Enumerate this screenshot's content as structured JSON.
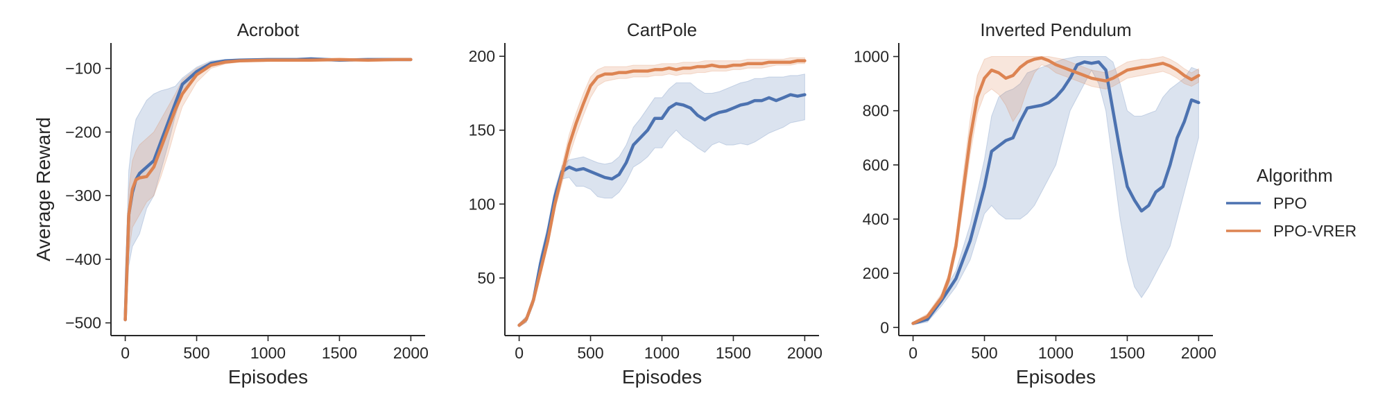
{
  "legend": {
    "title": "Algorithm",
    "items": [
      {
        "label": "PPO",
        "color": "#4C72B0"
      },
      {
        "label": "PPO-VRER",
        "color": "#DD8452"
      }
    ]
  },
  "chart_data": [
    {
      "type": "line",
      "title": "Acrobot",
      "xlabel": "Episodes",
      "ylabel": "Average Reward",
      "xlim": [
        -100,
        2100
      ],
      "ylim": [
        -520,
        -60
      ],
      "xticks": [
        0,
        500,
        1000,
        1500,
        2000
      ],
      "yticks": [
        -500,
        -400,
        -300,
        -200,
        -100
      ],
      "grid": false,
      "series": [
        {
          "name": "PPO",
          "color": "#4C72B0",
          "x": [
            0,
            10,
            25,
            50,
            75,
            100,
            150,
            200,
            250,
            300,
            350,
            400,
            500,
            600,
            700,
            800,
            1000,
            1200,
            1300,
            1500,
            1700,
            1900,
            2000
          ],
          "y": [
            -495,
            -420,
            -330,
            -295,
            -275,
            -265,
            -255,
            -245,
            -215,
            -185,
            -155,
            -125,
            -105,
            -92,
            -88,
            -87,
            -86,
            -86,
            -85,
            -87,
            -86,
            -86,
            -86
          ],
          "lower": [
            -495,
            -470,
            -410,
            -380,
            -370,
            -360,
            -320,
            -300,
            -260,
            -220,
            -175,
            -140,
            -112,
            -95,
            -90,
            -89,
            -89,
            -88,
            -88,
            -89,
            -88,
            -88,
            -88
          ],
          "upper": [
            -495,
            -360,
            -260,
            -210,
            -180,
            -170,
            -150,
            -140,
            -135,
            -132,
            -128,
            -115,
            -98,
            -88,
            -86,
            -85,
            -84,
            -84,
            -83,
            -85,
            -84,
            -84,
            -84
          ]
        },
        {
          "name": "PPO-VRER",
          "color": "#DD8452",
          "x": [
            0,
            10,
            25,
            50,
            75,
            100,
            150,
            200,
            250,
            300,
            350,
            400,
            500,
            600,
            700,
            800,
            1000,
            1200,
            1300,
            1500,
            1700,
            1900,
            2000
          ],
          "y": [
            -495,
            -430,
            -330,
            -290,
            -275,
            -272,
            -270,
            -255,
            -225,
            -195,
            -165,
            -140,
            -110,
            -95,
            -90,
            -88,
            -87,
            -87,
            -87,
            -86,
            -87,
            -86,
            -86
          ],
          "lower": [
            -495,
            -460,
            -390,
            -350,
            -340,
            -330,
            -310,
            -300,
            -270,
            -235,
            -195,
            -160,
            -122,
            -100,
            -93,
            -90,
            -89,
            -89,
            -89,
            -88,
            -89,
            -88,
            -88
          ],
          "upper": [
            -495,
            -400,
            -290,
            -245,
            -230,
            -220,
            -210,
            -200,
            -180,
            -160,
            -140,
            -118,
            -100,
            -90,
            -87,
            -86,
            -85,
            -85,
            -85,
            -84,
            -85,
            -84,
            -84
          ]
        }
      ]
    },
    {
      "type": "line",
      "title": "CartPole",
      "xlabel": "Episodes",
      "ylabel": "",
      "xlim": [
        -100,
        2100
      ],
      "ylim": [
        11,
        209
      ],
      "xticks": [
        0,
        500,
        1000,
        1500,
        2000
      ],
      "yticks": [
        50,
        100,
        150,
        200
      ],
      "grid": false,
      "series": [
        {
          "name": "PPO",
          "color": "#4C72B0",
          "x": [
            0,
            50,
            100,
            150,
            200,
            250,
            300,
            350,
            400,
            450,
            500,
            550,
            600,
            650,
            700,
            750,
            800,
            850,
            900,
            950,
            1000,
            1050,
            1100,
            1150,
            1200,
            1250,
            1300,
            1350,
            1400,
            1450,
            1500,
            1550,
            1600,
            1650,
            1700,
            1750,
            1800,
            1850,
            1900,
            1950,
            2000
          ],
          "y": [
            18,
            22,
            35,
            60,
            80,
            105,
            122,
            125,
            123,
            124,
            122,
            120,
            118,
            117,
            120,
            128,
            140,
            145,
            150,
            158,
            158,
            165,
            168,
            167,
            165,
            160,
            157,
            160,
            162,
            163,
            165,
            167,
            168,
            170,
            170,
            172,
            170,
            172,
            174,
            173,
            174
          ],
          "lower": [
            17,
            20,
            32,
            55,
            75,
            100,
            117,
            118,
            112,
            112,
            110,
            105,
            104,
            104,
            108,
            115,
            125,
            128,
            132,
            138,
            138,
            145,
            150,
            145,
            142,
            138,
            135,
            140,
            142,
            140,
            140,
            141,
            140,
            142,
            145,
            148,
            150,
            152,
            155,
            156,
            157
          ],
          "upper": [
            19,
            24,
            38,
            65,
            85,
            110,
            126,
            130,
            131,
            132,
            130,
            128,
            127,
            128,
            132,
            140,
            152,
            158,
            165,
            172,
            172,
            178,
            182,
            182,
            182,
            178,
            175,
            175,
            176,
            178,
            180,
            182,
            183,
            185,
            185,
            186,
            186,
            186,
            187,
            187,
            188
          ]
        },
        {
          "name": "PPO-VRER",
          "color": "#DD8452",
          "x": [
            0,
            50,
            100,
            150,
            200,
            250,
            300,
            350,
            400,
            450,
            500,
            550,
            600,
            650,
            700,
            750,
            800,
            850,
            900,
            950,
            1000,
            1050,
            1100,
            1150,
            1200,
            1250,
            1300,
            1350,
            1400,
            1450,
            1500,
            1550,
            1600,
            1650,
            1700,
            1750,
            1800,
            1850,
            1900,
            1950,
            2000
          ],
          "y": [
            18,
            22,
            35,
            55,
            75,
            100,
            120,
            140,
            155,
            168,
            180,
            186,
            188,
            188,
            189,
            189,
            190,
            190,
            190,
            191,
            191,
            192,
            191,
            192,
            192,
            193,
            193,
            194,
            193,
            193,
            194,
            194,
            195,
            195,
            195,
            196,
            196,
            196,
            196,
            197,
            197
          ],
          "lower": [
            17,
            20,
            32,
            52,
            72,
            96,
            114,
            132,
            147,
            160,
            172,
            180,
            183,
            184,
            185,
            185,
            186,
            186,
            186,
            187,
            187,
            188,
            187,
            188,
            188,
            189,
            189,
            190,
            190,
            190,
            191,
            191,
            192,
            192,
            192,
            193,
            194,
            194,
            194,
            195,
            195
          ],
          "upper": [
            19,
            24,
            38,
            58,
            78,
            104,
            126,
            147,
            162,
            175,
            186,
            191,
            193,
            193,
            193,
            193,
            194,
            194,
            194,
            194,
            195,
            195,
            195,
            196,
            196,
            196,
            197,
            197,
            197,
            197,
            197,
            197,
            198,
            198,
            198,
            198,
            198,
            198,
            199,
            199,
            199
          ]
        }
      ]
    },
    {
      "type": "line",
      "title": "Inverted Pendulum",
      "xlabel": "Episodes",
      "ylabel": "",
      "xlim": [
        -100,
        2100
      ],
      "ylim": [
        -30,
        1050
      ],
      "xticks": [
        0,
        500,
        1000,
        1500,
        2000
      ],
      "yticks": [
        0,
        200,
        400,
        600,
        800,
        1000
      ],
      "grid": false,
      "series": [
        {
          "name": "PPO",
          "color": "#4C72B0",
          "x": [
            0,
            100,
            200,
            300,
            400,
            500,
            550,
            600,
            650,
            700,
            750,
            800,
            850,
            900,
            950,
            1000,
            1050,
            1100,
            1150,
            1200,
            1250,
            1300,
            1350,
            1400,
            1450,
            1500,
            1550,
            1600,
            1650,
            1700,
            1750,
            1800,
            1850,
            1900,
            1950,
            2000
          ],
          "y": [
            15,
            30,
            100,
            180,
            320,
            520,
            650,
            670,
            690,
            700,
            760,
            810,
            815,
            820,
            830,
            850,
            880,
            920,
            970,
            980,
            975,
            980,
            950,
            800,
            650,
            520,
            470,
            430,
            450,
            500,
            520,
            600,
            700,
            760,
            840,
            830
          ],
          "lower": [
            10,
            20,
            80,
            150,
            250,
            420,
            450,
            420,
            400,
            400,
            400,
            420,
            450,
            500,
            550,
            600,
            700,
            800,
            850,
            900,
            950,
            900,
            800,
            600,
            400,
            250,
            150,
            110,
            150,
            200,
            250,
            300,
            400,
            500,
            600,
            700
          ],
          "upper": [
            20,
            45,
            120,
            210,
            380,
            620,
            780,
            850,
            870,
            880,
            900,
            940,
            950,
            960,
            970,
            980,
            990,
            995,
            1000,
            1000,
            1000,
            1000,
            1000,
            980,
            900,
            800,
            780,
            780,
            790,
            800,
            850,
            880,
            900,
            920,
            960,
            950
          ]
        },
        {
          "name": "PPO-VRER",
          "color": "#DD8452",
          "x": [
            0,
            100,
            200,
            250,
            300,
            350,
            400,
            450,
            500,
            550,
            600,
            650,
            700,
            750,
            800,
            850,
            900,
            950,
            1000,
            1050,
            1100,
            1150,
            1200,
            1250,
            1300,
            1350,
            1400,
            1450,
            1500,
            1550,
            1600,
            1650,
            1700,
            1750,
            1800,
            1850,
            1900,
            1950,
            2000
          ],
          "y": [
            15,
            40,
            110,
            180,
            300,
            500,
            700,
            850,
            920,
            950,
            940,
            920,
            930,
            960,
            980,
            990,
            995,
            985,
            970,
            960,
            950,
            940,
            930,
            920,
            915,
            910,
            920,
            935,
            950,
            955,
            960,
            965,
            970,
            975,
            965,
            950,
            930,
            915,
            930
          ],
          "lower": [
            10,
            30,
            95,
            160,
            270,
            450,
            640,
            790,
            860,
            880,
            860,
            820,
            760,
            800,
            880,
            940,
            970,
            960,
            940,
            930,
            920,
            910,
            900,
            890,
            885,
            880,
            890,
            905,
            920,
            925,
            930,
            935,
            940,
            945,
            935,
            920,
            900,
            890,
            905
          ],
          "upper": [
            20,
            50,
            125,
            200,
            330,
            560,
            770,
            930,
            990,
            1000,
            1000,
            1000,
            1000,
            1000,
            1000,
            1000,
            1000,
            1000,
            995,
            990,
            980,
            970,
            960,
            950,
            945,
            940,
            950,
            965,
            980,
            985,
            990,
            990,
            995,
            1000,
            990,
            975,
            955,
            940,
            955
          ]
        }
      ]
    }
  ]
}
